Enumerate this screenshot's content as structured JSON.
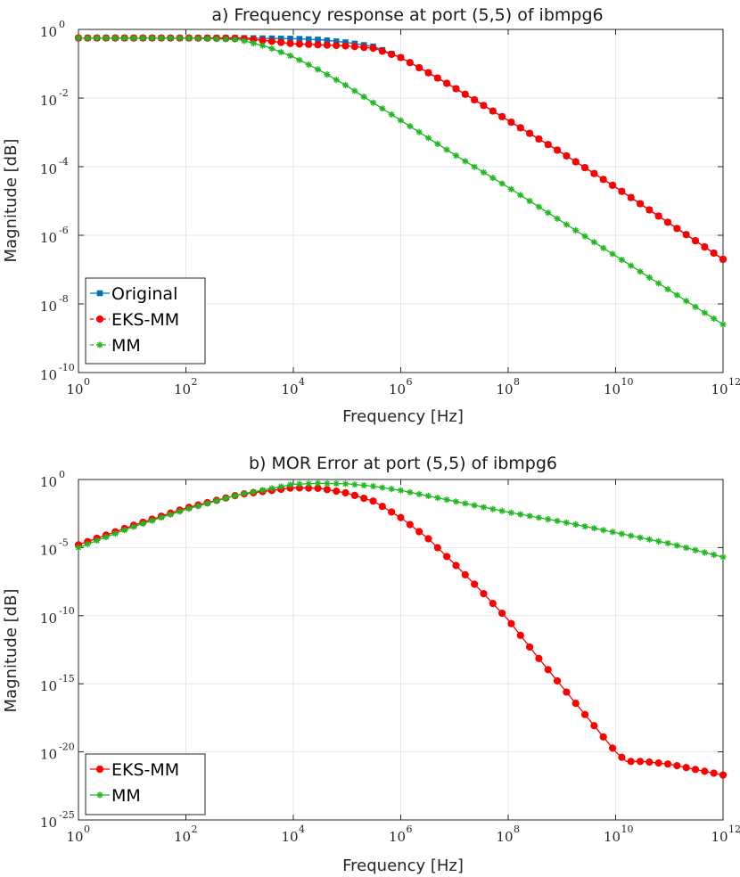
{
  "charts": [
    {
      "type": "line",
      "title": "a) Frequency response at port (5,5) of ibmpg6",
      "xlabel": "Frequency [Hz]",
      "ylabel": "Magnitude [dB]",
      "xscale": "log",
      "yscale": "log",
      "xlim_exp": [
        0,
        12
      ],
      "ylim_exp": [
        -10,
        0
      ],
      "xtick_exps": [
        0,
        2,
        4,
        6,
        8,
        10,
        12
      ],
      "ytick_exps": [
        0,
        -2,
        -4,
        -6,
        -8,
        -10
      ],
      "grid": true,
      "legend_position": "bottom-left",
      "series": [
        {
          "name": "Original",
          "color": "#0072BD",
          "marker": "square",
          "x_exp": [
            0,
            1,
            2,
            3,
            3.5,
            4,
            4.5,
            5,
            5.5,
            6,
            6.5,
            7,
            8,
            9,
            10,
            11,
            12
          ],
          "y_exp": [
            -0.25,
            -0.25,
            -0.25,
            -0.25,
            -0.26,
            -0.27,
            -0.3,
            -0.38,
            -0.5,
            -0.82,
            -1.25,
            -1.7,
            -2.65,
            -3.6,
            -4.6,
            -5.65,
            -6.7
          ]
        },
        {
          "name": "EKS-MM",
          "color": "#FF0000",
          "marker": "circle",
          "x_exp": [
            0,
            1,
            2,
            3,
            3.5,
            4,
            4.5,
            5,
            5.5,
            6,
            6.5,
            7,
            8,
            9,
            10,
            11,
            12
          ],
          "y_exp": [
            -0.25,
            -0.25,
            -0.25,
            -0.26,
            -0.33,
            -0.42,
            -0.45,
            -0.48,
            -0.55,
            -0.82,
            -1.25,
            -1.7,
            -2.65,
            -3.6,
            -4.6,
            -5.65,
            -6.7
          ]
        },
        {
          "name": "MM",
          "color": "#22B822",
          "marker": "star",
          "x_exp": [
            0,
            1,
            2,
            3,
            3.5,
            4,
            4.5,
            5,
            5.5,
            6,
            7,
            8,
            9,
            10,
            11,
            12
          ],
          "y_exp": [
            -0.25,
            -0.25,
            -0.25,
            -0.3,
            -0.5,
            -0.8,
            -1.2,
            -1.65,
            -2.15,
            -2.65,
            -3.65,
            -4.6,
            -5.6,
            -6.6,
            -7.6,
            -8.6
          ]
        }
      ]
    },
    {
      "type": "line",
      "title": "b) MOR Error at port (5,5) of ibmpg6",
      "xlabel": "Frequency [Hz]",
      "ylabel": "Magnitude [dB]",
      "xscale": "log",
      "yscale": "log",
      "xlim_exp": [
        0,
        12
      ],
      "ylim_exp": [
        -25,
        0
      ],
      "xtick_exps": [
        0,
        2,
        4,
        6,
        8,
        10,
        12
      ],
      "ytick_exps": [
        0,
        -5,
        -10,
        -15,
        -20,
        -25
      ],
      "grid": true,
      "legend_position": "bottom-left",
      "series": [
        {
          "name": "EKS-MM",
          "color": "#FF0000",
          "marker": "circle",
          "x_exp": [
            0,
            1,
            2,
            3,
            4,
            4.5,
            5,
            5.5,
            6,
            6.5,
            7,
            7.5,
            8,
            8.5,
            9,
            9.5,
            10,
            10.2,
            10.5,
            11,
            11.5,
            12
          ],
          "y_exp": [
            -4.8,
            -3.4,
            -2.1,
            -1.1,
            -0.6,
            -0.65,
            -1,
            -1.6,
            -2.8,
            -4.3,
            -6.2,
            -8.2,
            -10.3,
            -12.8,
            -15.2,
            -17.6,
            -20,
            -20.7,
            -20.7,
            -20.9,
            -21.3,
            -21.7
          ]
        },
        {
          "name": "MM",
          "color": "#22B822",
          "marker": "star",
          "x_exp": [
            0,
            1,
            2,
            3,
            4,
            4.5,
            5,
            5.5,
            6,
            7,
            8,
            9,
            10,
            11,
            12
          ],
          "y_exp": [
            -5,
            -3.5,
            -2.2,
            -1.1,
            -0.35,
            -0.28,
            -0.32,
            -0.5,
            -0.8,
            -1.6,
            -2.4,
            -3.1,
            -3.9,
            -4.7,
            -5.7
          ]
        }
      ]
    }
  ]
}
